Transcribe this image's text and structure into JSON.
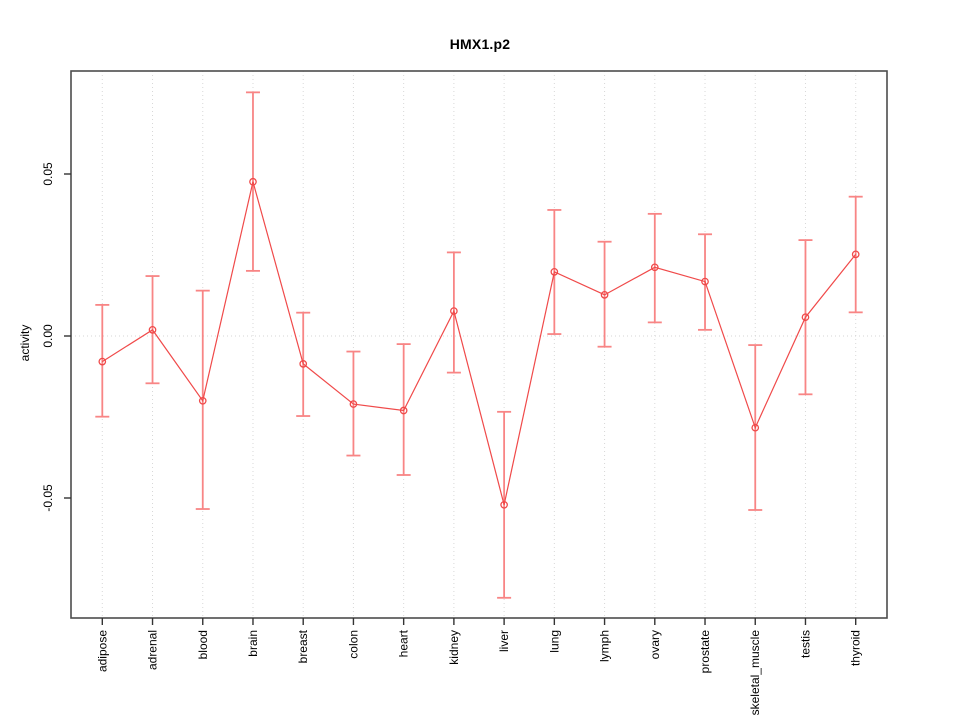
{
  "chart_data": {
    "type": "line",
    "title": "HMX1.p2",
    "xlabel": "",
    "ylabel": "activity",
    "legend": "none",
    "grid": "dotted vertical gridline at each category; dotted horizontal line at y=0",
    "error_bars": true,
    "categories": [
      "adipose",
      "adrenal",
      "blood",
      "brain",
      "breast",
      "colon",
      "heart",
      "kidney",
      "liver",
      "lung",
      "lymph",
      "ovary",
      "prostate",
      "skeletal_muscle",
      "testis",
      "thyroid"
    ],
    "series": [
      {
        "name": "activity",
        "values": [
          -0.0079,
          0.0019,
          -0.02,
          0.0476,
          -0.0086,
          -0.021,
          -0.023,
          0.0077,
          -0.0521,
          0.0198,
          0.0127,
          0.0212,
          0.0168,
          -0.0283,
          0.0058,
          0.0252
        ],
        "lower": [
          -0.0249,
          -0.0146,
          -0.0534,
          0.0201,
          -0.0247,
          -0.0369,
          -0.0429,
          -0.0113,
          -0.0808,
          0.0006,
          -0.0033,
          0.0042,
          0.0019,
          -0.0537,
          -0.018,
          0.0073
        ],
        "upper": [
          0.0096,
          0.0185,
          0.014,
          0.0752,
          0.0072,
          -0.0048,
          -0.0025,
          0.0258,
          -0.0234,
          0.0389,
          0.0291,
          0.0377,
          0.0314,
          -0.0028,
          0.0296,
          0.043
        ]
      }
    ],
    "yticks": [
      -0.05,
      0.0,
      0.05
    ],
    "ytick_labels": [
      "-0.05",
      "0.00",
      "0.05"
    ],
    "ylim": [
      -0.087,
      0.082
    ],
    "marker": "open-circle",
    "colors": {
      "series_line": "#f04a4a",
      "marker": "#f04a4a",
      "error_bar": "#f88585",
      "gridline": "#d8d8d8",
      "zero_line": "#d4d4d4",
      "plot_border": "#4d4d4d",
      "tick": "#333333",
      "text": "#000000",
      "background": "#ffffff"
    }
  }
}
